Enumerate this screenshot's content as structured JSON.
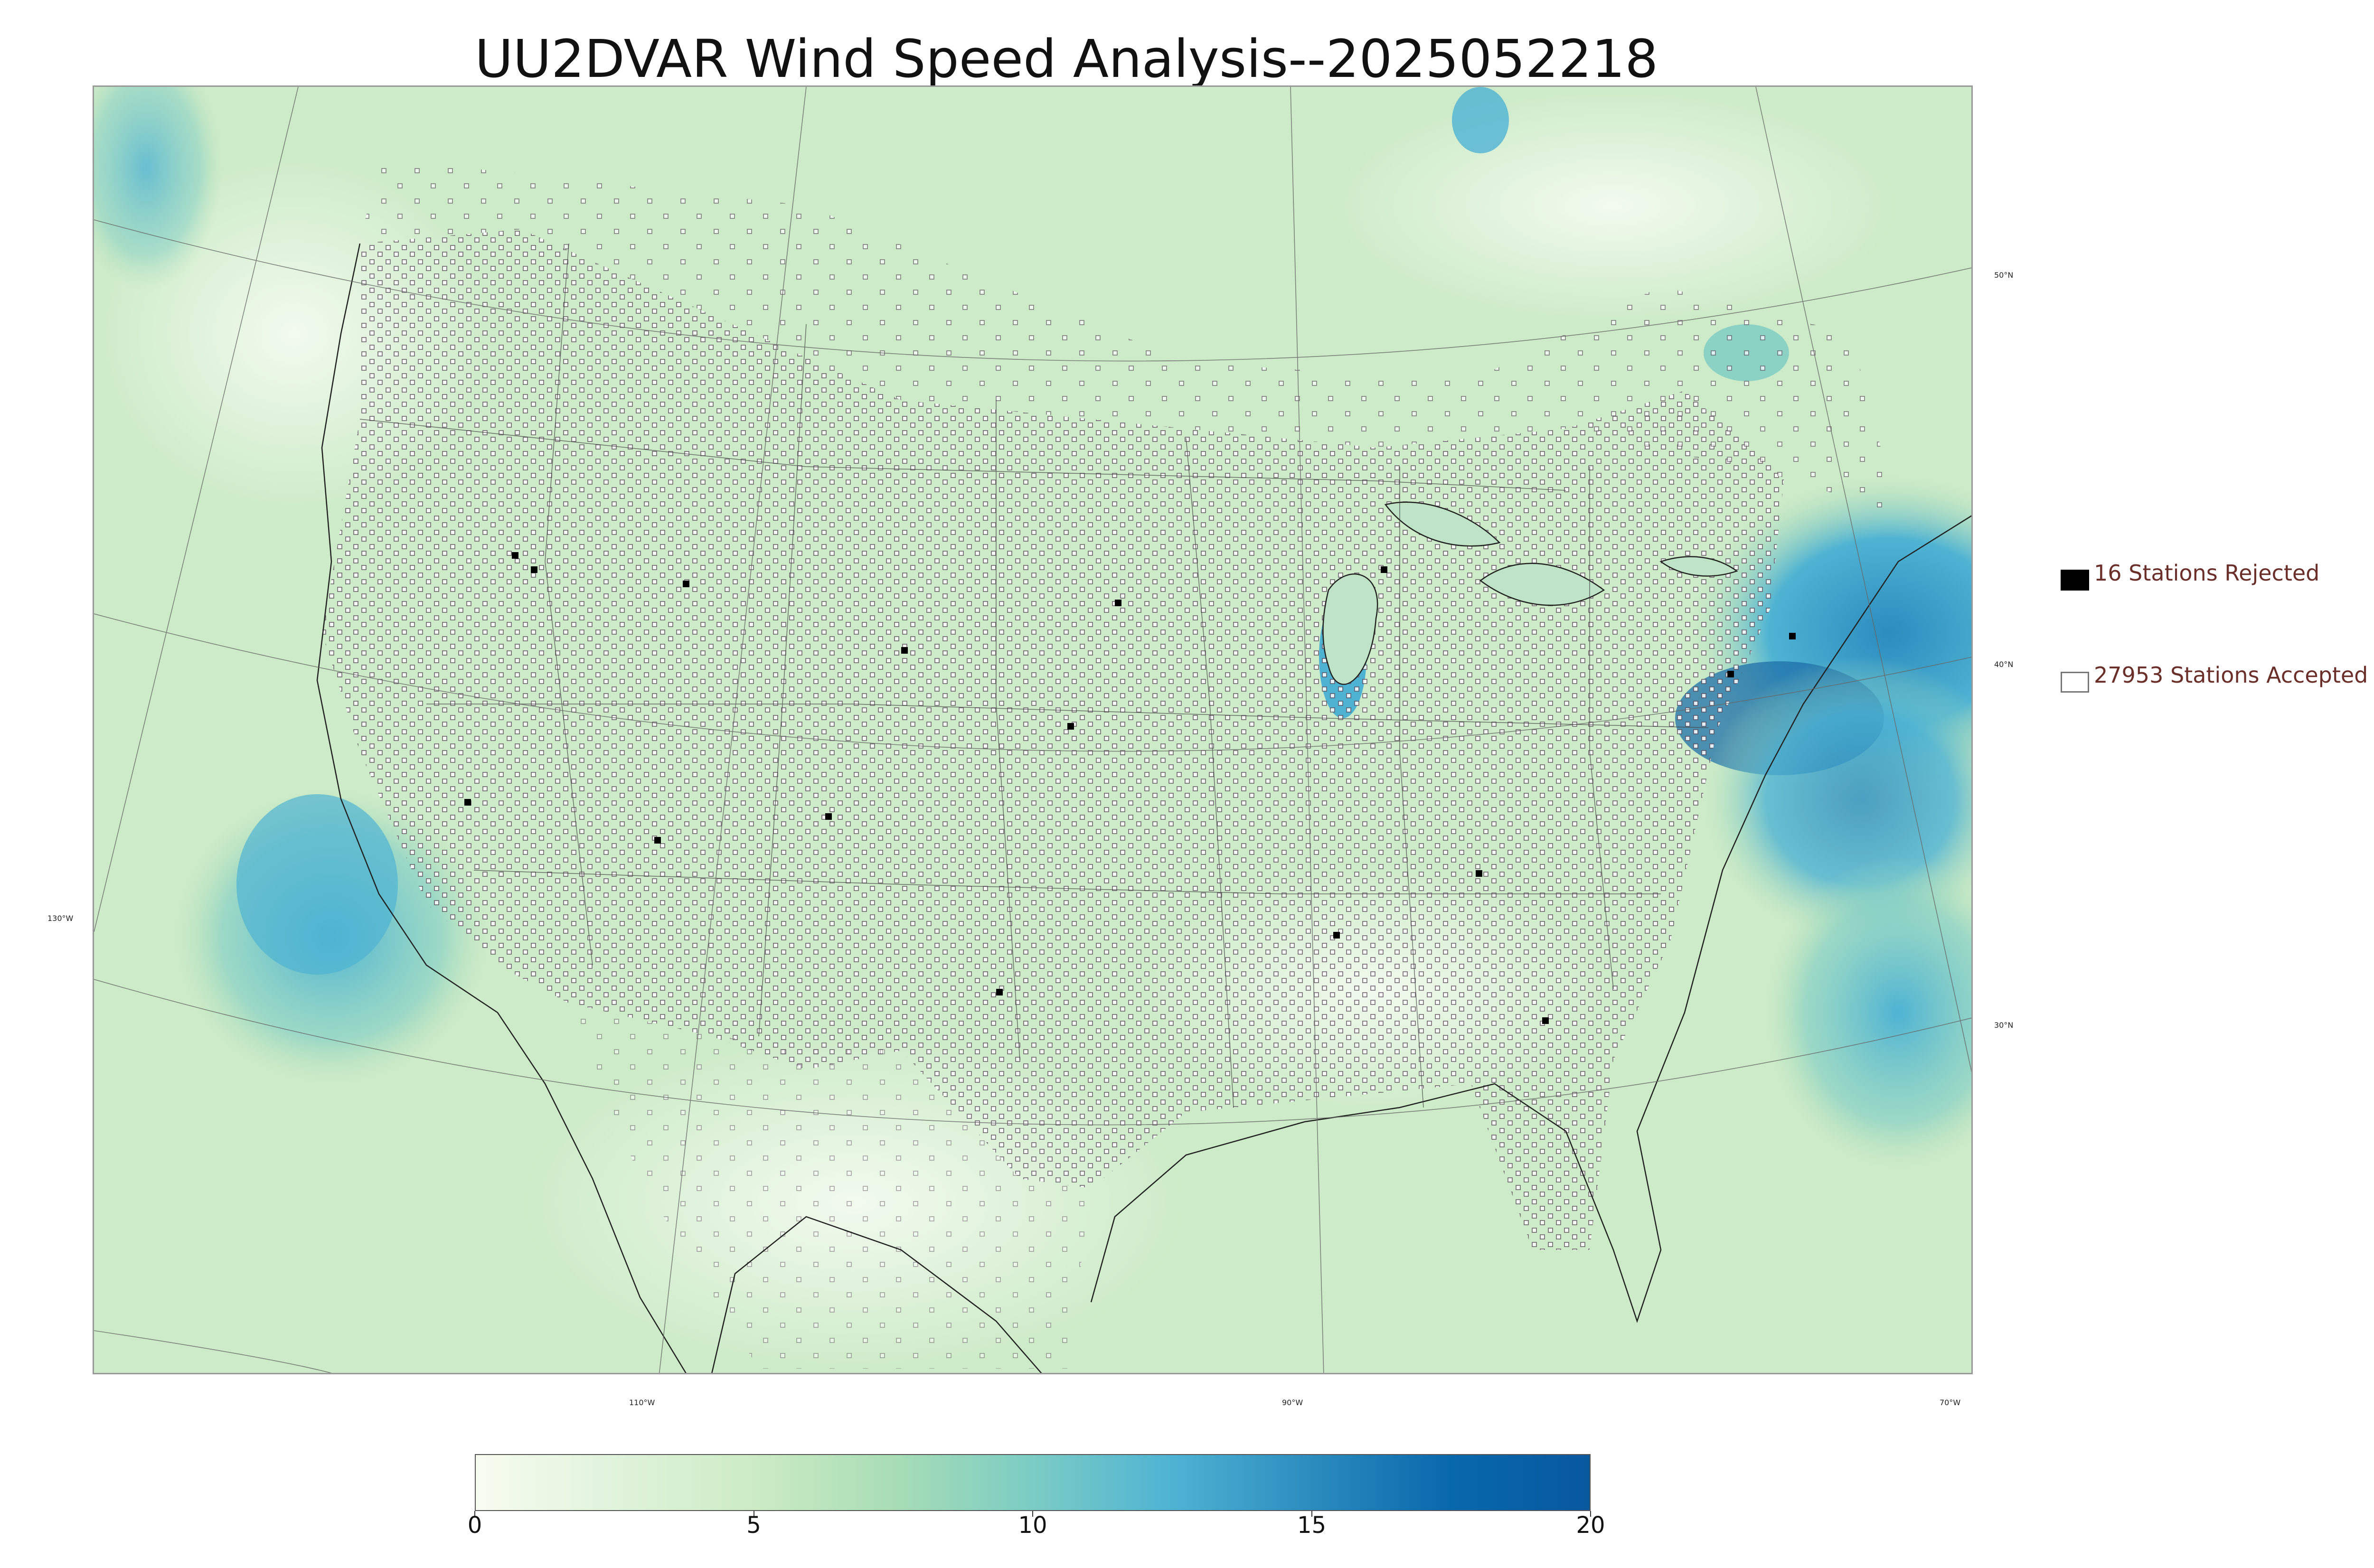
{
  "title": "UU2DVAR Wind Speed Analysis--2025052218",
  "graticule": {
    "lat_labels": [
      "50°N",
      "40°N",
      "30°N"
    ],
    "lon_labels": [
      "130°W",
      "110°W",
      "90°W",
      "70°W"
    ]
  },
  "legend": {
    "rejected": {
      "count": 16,
      "label": "16 Stations Rejected",
      "color": "#000000"
    },
    "accepted": {
      "count": 27953,
      "label": "27953 Stations Accepted",
      "color": "#ffffff"
    }
  },
  "colorbar": {
    "min": 0,
    "max": 20,
    "ticks": [
      "0",
      "5",
      "10",
      "15",
      "20"
    ],
    "colors": [
      "#f7fcf0",
      "#e0f3db",
      "#ccebc5",
      "#a8ddb5",
      "#7bccc4",
      "#4eb3d3",
      "#2b8cbe",
      "#0868ac",
      "#08589e"
    ]
  },
  "colors": {
    "land": "#d4edd1",
    "ocean_light": "#c8e8c8",
    "wind_high": "#2b8cbe",
    "wind_max": "#1a5f92",
    "boundary": "#333333"
  }
}
